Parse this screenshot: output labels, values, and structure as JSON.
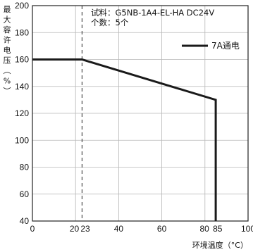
{
  "chart_data": {
    "type": "line",
    "ylabel": "最大容许电压（%）",
    "xlabel": "环境温度（°C）",
    "xlim": [
      0,
      100
    ],
    "ylim": [
      40,
      200
    ],
    "xticks": [
      0,
      20,
      23,
      40,
      60,
      80,
      85,
      100
    ],
    "yticks": [
      40,
      60,
      80,
      100,
      120,
      140,
      160,
      180,
      200
    ],
    "grid": true,
    "legend_position": "top-right",
    "reference_line_x": 23,
    "annotations": [
      "试料：G5NB-1A4-EL-HA  DC24V",
      "个数：5个"
    ],
    "series": [
      {
        "name": "7A通电",
        "color": "#1a1a1a",
        "points": [
          {
            "x": 0,
            "y": 160
          },
          {
            "x": 23,
            "y": 160
          },
          {
            "x": 85,
            "y": 130
          },
          {
            "x": 85,
            "y": 40
          }
        ]
      }
    ]
  }
}
